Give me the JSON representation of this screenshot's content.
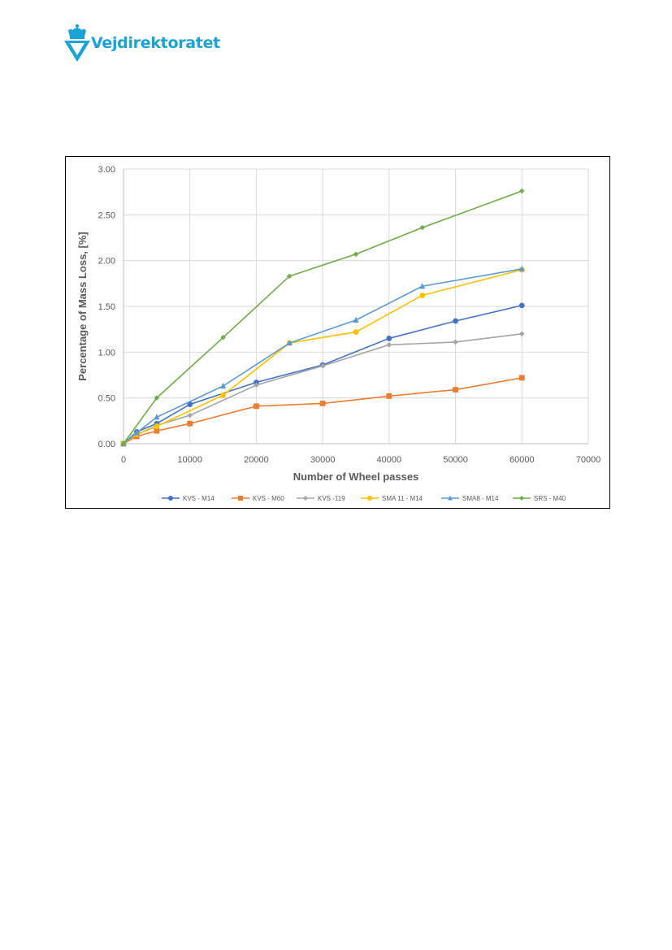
{
  "brand": {
    "name": "Vejdirektoratet",
    "color": "#1aa3d6"
  },
  "chart_data": {
    "type": "line",
    "xlabel": "Number of Wheel passes",
    "ylabel": "Percentage of Mass Loss, [%]",
    "xlim": [
      0,
      70000
    ],
    "ylim": [
      0,
      3
    ],
    "xticks": [
      0,
      10000,
      20000,
      30000,
      40000,
      50000,
      60000,
      70000
    ],
    "yticks": [
      "0.00",
      "0.50",
      "1.00",
      "1.50",
      "2.00",
      "2.50",
      "3.00"
    ],
    "grid": true,
    "legend_position": "bottom",
    "series": [
      {
        "name": "KVS - M14",
        "color": "#4472c4",
        "marker": "circle",
        "points": [
          [
            0,
            0
          ],
          [
            2000,
            0.13
          ],
          [
            5000,
            0.22
          ],
          [
            10000,
            0.43
          ],
          [
            20000,
            0.67
          ],
          [
            30000,
            0.86
          ],
          [
            40000,
            1.15
          ],
          [
            50000,
            1.34
          ],
          [
            60000,
            1.51
          ]
        ]
      },
      {
        "name": "KVS - M60",
        "color": "#ed7d31",
        "marker": "square",
        "points": [
          [
            0,
            0
          ],
          [
            2000,
            0.08
          ],
          [
            5000,
            0.14
          ],
          [
            10000,
            0.22
          ],
          [
            20000,
            0.41
          ],
          [
            30000,
            0.44
          ],
          [
            40000,
            0.52
          ],
          [
            50000,
            0.59
          ],
          [
            60000,
            0.72
          ]
        ]
      },
      {
        "name": "KVS -119",
        "color": "#a5a5a5",
        "marker": "diamond",
        "points": [
          [
            0,
            0
          ],
          [
            2000,
            0.1
          ],
          [
            5000,
            0.2
          ],
          [
            10000,
            0.31
          ],
          [
            20000,
            0.64
          ],
          [
            30000,
            0.85
          ],
          [
            40000,
            1.08
          ],
          [
            50000,
            1.11
          ],
          [
            60000,
            1.2
          ]
        ]
      },
      {
        "name": "SMA 11 - M14",
        "color": "#ffc000",
        "marker": "circle",
        "points": [
          [
            0,
            0
          ],
          [
            2000,
            0.1
          ],
          [
            5000,
            0.19
          ],
          [
            15000,
            0.53
          ],
          [
            25000,
            1.1
          ],
          [
            35000,
            1.22
          ],
          [
            45000,
            1.62
          ],
          [
            60000,
            1.9
          ]
        ]
      },
      {
        "name": "SMA8 - M14",
        "color": "#5b9bd5",
        "marker": "triangle",
        "points": [
          [
            0,
            0
          ],
          [
            2000,
            0.12
          ],
          [
            5000,
            0.29
          ],
          [
            15000,
            0.63
          ],
          [
            25000,
            1.1
          ],
          [
            35000,
            1.35
          ],
          [
            45000,
            1.72
          ],
          [
            60000,
            1.91
          ]
        ]
      },
      {
        "name": "SRS - M40",
        "color": "#70ad47",
        "marker": "diamond",
        "points": [
          [
            0,
            0
          ],
          [
            5000,
            0.5
          ],
          [
            15000,
            1.16
          ],
          [
            25000,
            1.83
          ],
          [
            35000,
            2.07
          ],
          [
            45000,
            2.36
          ],
          [
            60000,
            2.76
          ]
        ]
      }
    ]
  }
}
